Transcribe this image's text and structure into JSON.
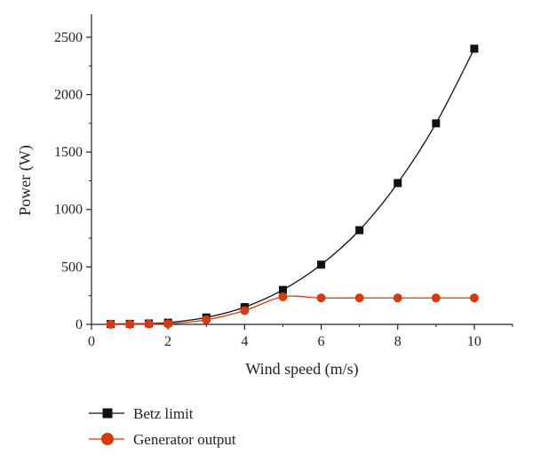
{
  "chart_data": {
    "type": "line",
    "title": "",
    "xlabel": "Wind speed (m/s)",
    "ylabel": "Power (W)",
    "xlim": [
      0,
      11
    ],
    "ylim": [
      0,
      2700
    ],
    "x_ticks": [
      0,
      2,
      4,
      6,
      8,
      10
    ],
    "y_ticks": [
      0,
      500,
      1000,
      1500,
      2000,
      2500
    ],
    "grid": false,
    "legend_position": "bottom-left, below plot",
    "series": [
      {
        "name": "Betz limit",
        "color": "#111111",
        "marker": "square",
        "x": [
          0.5,
          1,
          1.5,
          2,
          3,
          4,
          5,
          6,
          7,
          8,
          9,
          10
        ],
        "y": [
          3,
          5,
          8,
          15,
          60,
          150,
          300,
          520,
          820,
          1230,
          1750,
          2400
        ]
      },
      {
        "name": "Generator output",
        "color": "#d83a10",
        "marker": "circle",
        "x": [
          0.5,
          1,
          1.5,
          2,
          3,
          4,
          5,
          6,
          7,
          8,
          9,
          10
        ],
        "y": [
          0,
          1,
          3,
          5,
          40,
          120,
          240,
          230,
          230,
          230,
          230,
          230
        ]
      }
    ]
  }
}
